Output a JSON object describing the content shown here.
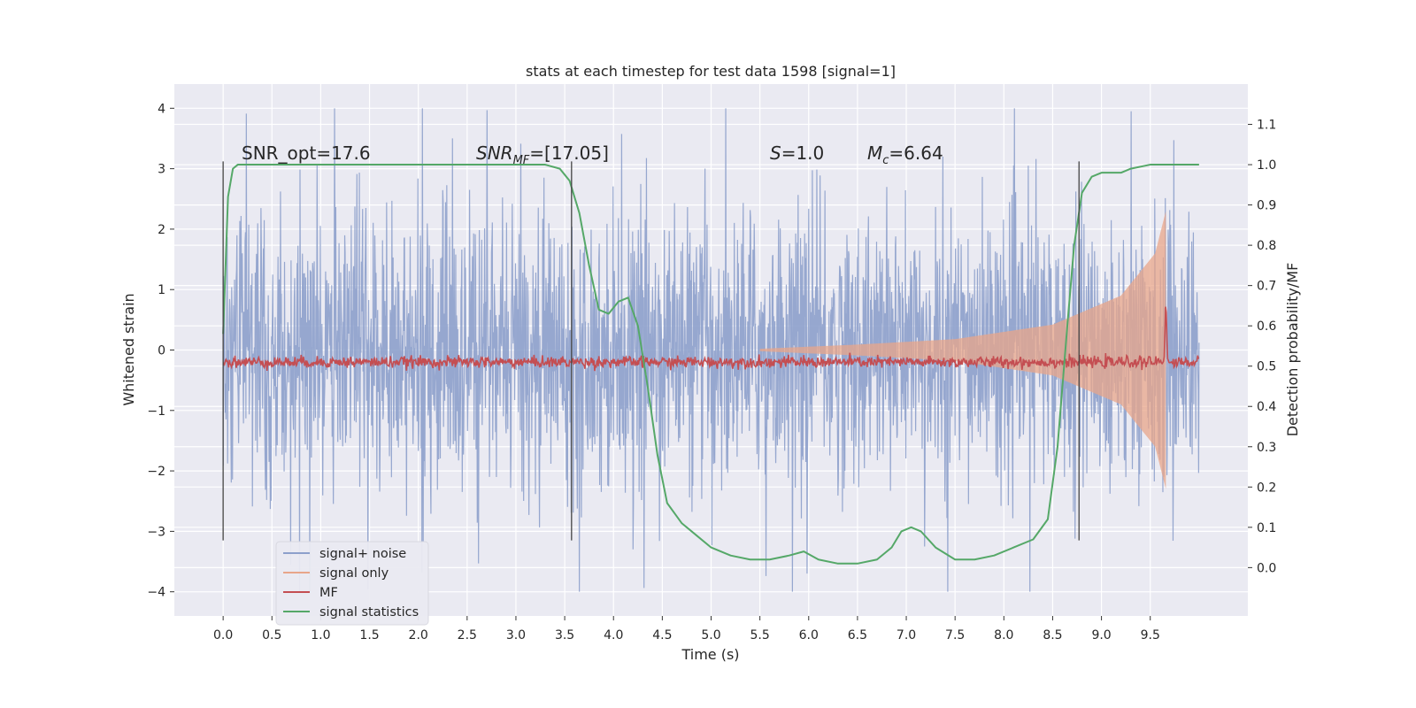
{
  "chart_data": {
    "type": "line",
    "title": "stats at each timestep for test data 1598 [signal=1]",
    "xlabel": "Time (s)",
    "ylabel": "Whitened strain",
    "y2label": "Detection probability/MF",
    "xlim": [
      -0.5,
      10.5
    ],
    "ylim": [
      -4.4,
      4.4
    ],
    "y2lim": [
      -0.12,
      1.2
    ],
    "x_ticks": [
      0.0,
      0.5,
      1.0,
      1.5,
      2.0,
      2.5,
      3.0,
      3.5,
      4.0,
      4.5,
      5.0,
      5.5,
      6.0,
      6.5,
      7.0,
      7.5,
      8.0,
      8.5,
      9.0,
      9.5
    ],
    "x_tick_labels": [
      "0.0",
      "0.5",
      "1.0",
      "1.5",
      "2.0",
      "2.5",
      "3.0",
      "3.5",
      "4.0",
      "4.5",
      "5.0",
      "5.5",
      "6.0",
      "6.5",
      "7.0",
      "7.5",
      "8.0",
      "8.5",
      "9.0",
      "9.5"
    ],
    "y_ticks": [
      -4,
      -3,
      -2,
      -1,
      0,
      1,
      2,
      3,
      4
    ],
    "y_tick_labels": [
      "−4",
      "−3",
      "−2",
      "−1",
      "0",
      "1",
      "2",
      "3",
      "4"
    ],
    "y2_ticks": [
      0.0,
      0.1,
      0.2,
      0.3,
      0.4,
      0.5,
      0.6,
      0.7,
      0.8,
      0.9,
      1.0,
      1.1
    ],
    "y2_tick_labels": [
      "0.0",
      "0.1",
      "0.2",
      "0.3",
      "0.4",
      "0.5",
      "0.6",
      "0.7",
      "0.8",
      "0.9",
      "1.0",
      "1.1"
    ],
    "grid": true,
    "legend_position": "lower-left",
    "series": [
      {
        "name": "signal+ noise",
        "color": "#8da0cb",
        "kind": "noise",
        "x_range": [
          0.0,
          10.0
        ],
        "amplitude_range": [
          -4.0,
          4.0
        ]
      },
      {
        "name": "signal only",
        "color": "#e8a58a",
        "kind": "chirp",
        "x_range": [
          5.5,
          9.66
        ],
        "envelope": [
          [
            5.5,
            0.02
          ],
          [
            6.5,
            0.09
          ],
          [
            7.5,
            0.18
          ],
          [
            8.5,
            0.42
          ],
          [
            9.2,
            0.9
          ],
          [
            9.55,
            1.6
          ],
          [
            9.66,
            2.3
          ]
        ]
      },
      {
        "name": "MF",
        "color": "#c44e52",
        "kind": "mf",
        "axis": "y2",
        "x_range": [
          0.0,
          10.0
        ],
        "baseline": 0.51,
        "peak": {
          "x": 9.66,
          "value": 0.66
        }
      },
      {
        "name": "signal statistics",
        "color": "#55a868",
        "axis": "y2",
        "x": [
          0.0,
          0.05,
          0.1,
          0.15,
          0.2,
          0.3,
          3.3,
          3.45,
          3.55,
          3.65,
          3.75,
          3.85,
          3.95,
          4.05,
          4.15,
          4.25,
          4.35,
          4.45,
          4.55,
          4.7,
          4.85,
          5.0,
          5.2,
          5.4,
          5.6,
          5.8,
          5.95,
          6.1,
          6.3,
          6.5,
          6.7,
          6.85,
          6.95,
          7.05,
          7.15,
          7.3,
          7.5,
          7.7,
          7.9,
          8.1,
          8.3,
          8.45,
          8.55,
          8.65,
          8.72,
          8.8,
          8.9,
          9.0,
          9.2,
          9.3,
          9.5,
          9.7,
          10.0
        ],
        "values": [
          0.58,
          0.92,
          0.99,
          1.0,
          1.0,
          1.0,
          1.0,
          0.99,
          0.96,
          0.88,
          0.75,
          0.64,
          0.63,
          0.66,
          0.67,
          0.6,
          0.45,
          0.28,
          0.16,
          0.11,
          0.08,
          0.05,
          0.03,
          0.02,
          0.02,
          0.03,
          0.04,
          0.02,
          0.01,
          0.01,
          0.02,
          0.05,
          0.09,
          0.1,
          0.09,
          0.05,
          0.02,
          0.02,
          0.03,
          0.05,
          0.07,
          0.12,
          0.3,
          0.6,
          0.8,
          0.93,
          0.97,
          0.98,
          0.98,
          0.99,
          1.0,
          1.0,
          1.0
        ]
      }
    ],
    "vertical_markers": [
      0.0,
      3.57,
      8.77
    ],
    "annotations": [
      {
        "x": 0.2,
        "y": 3.0,
        "text": "SNR_opt=17.6"
      },
      {
        "x": 2.6,
        "y": 3.0,
        "text": "SNR_MF=[17.05]"
      },
      {
        "x": 5.6,
        "y": 3.0,
        "text": "S=1.0"
      },
      {
        "x": 6.6,
        "y": 3.0,
        "text": "M_c=6.64"
      }
    ]
  }
}
